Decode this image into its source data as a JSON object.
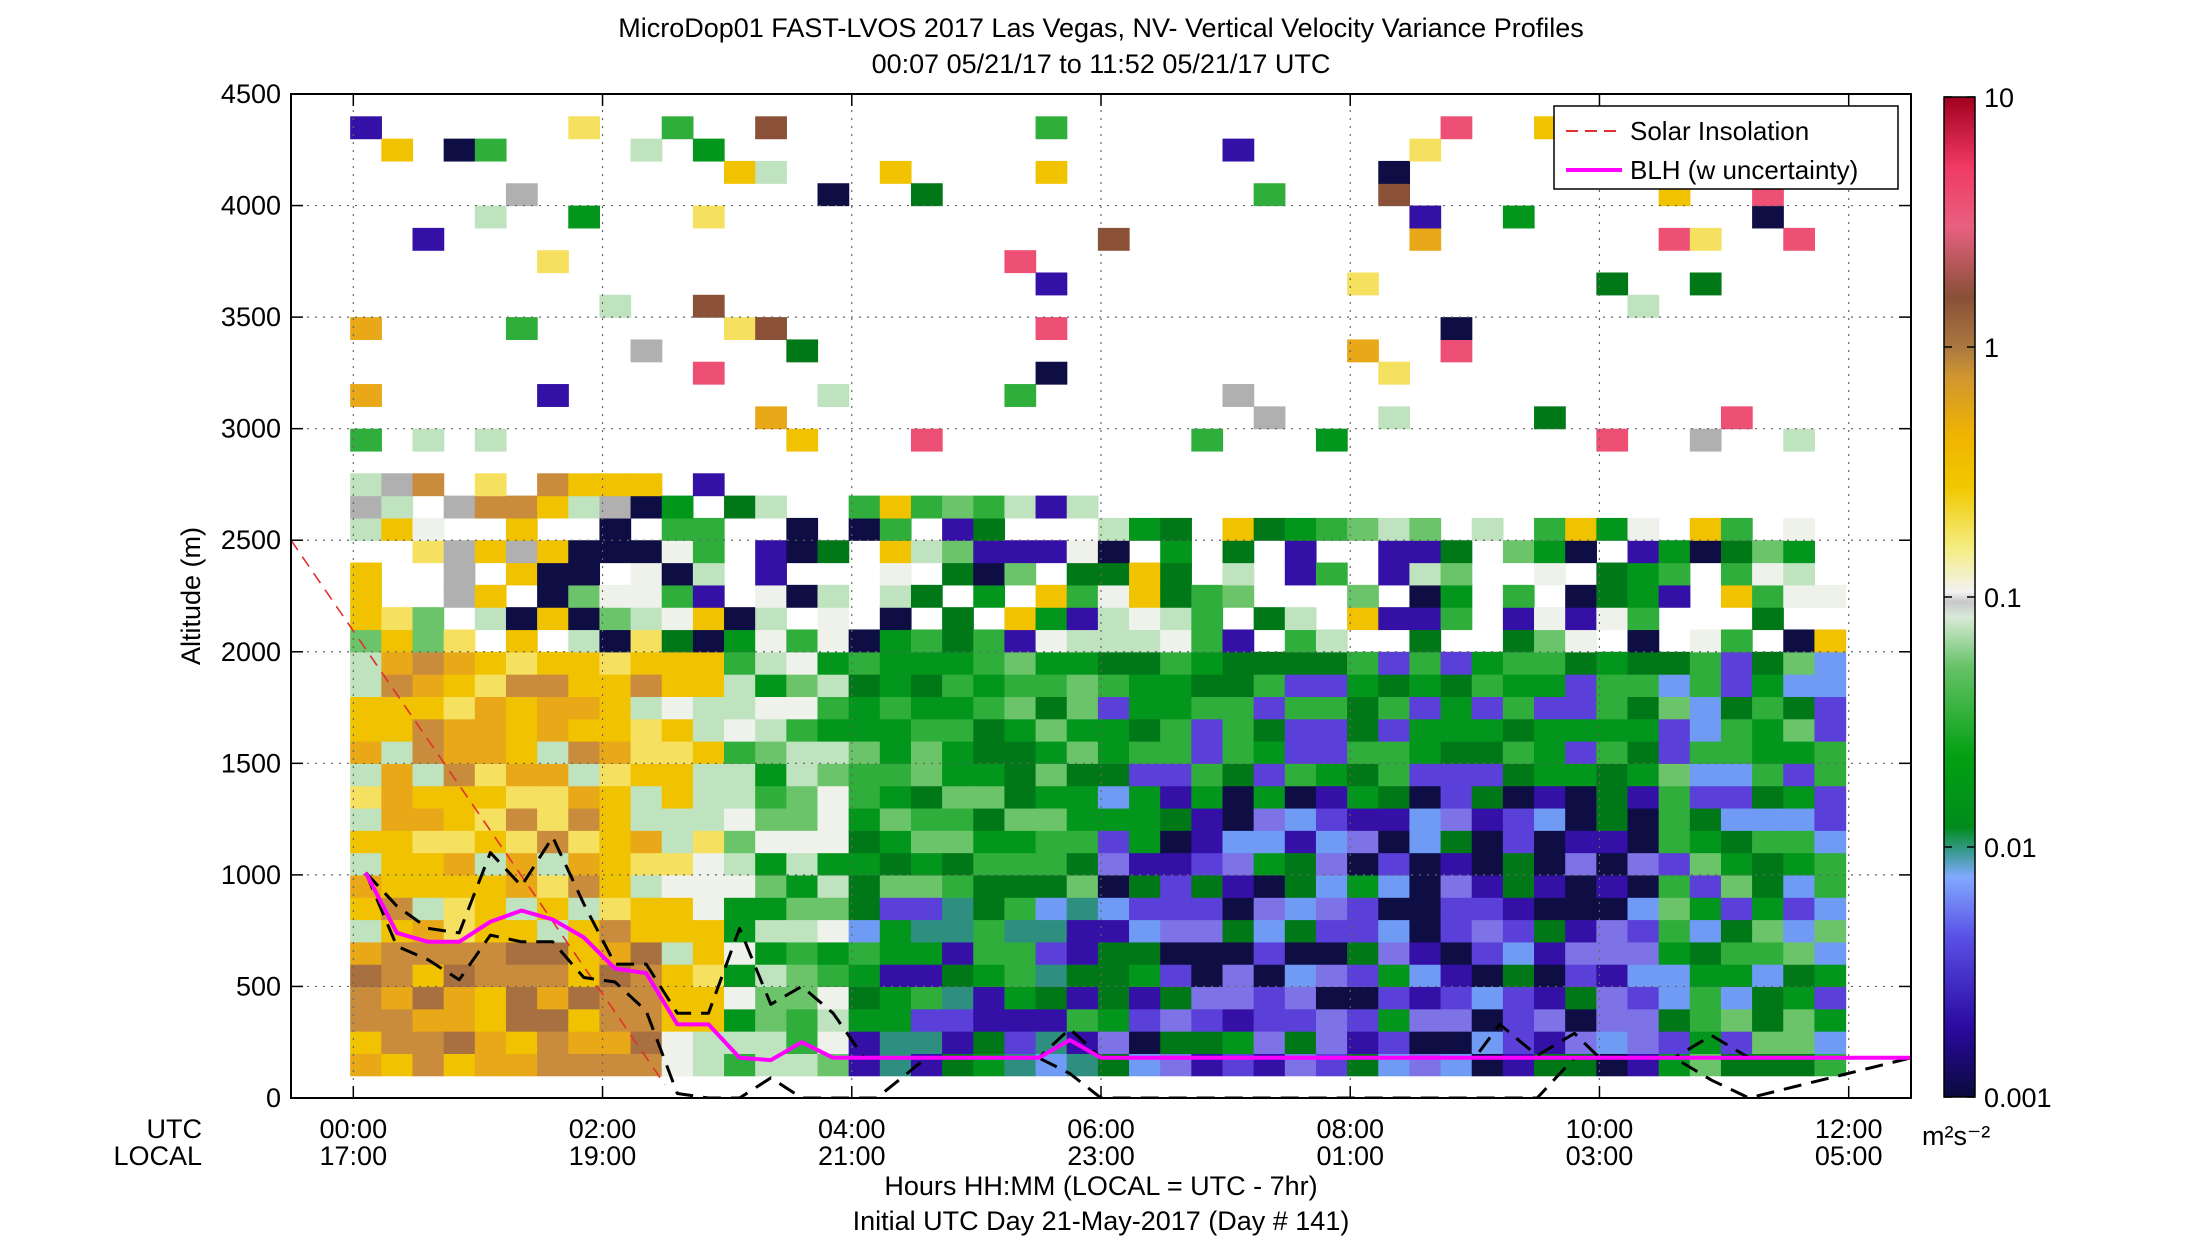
{
  "chart_data": {
    "type": "heatmap",
    "title": "MicroDop01 FAST-LVOS 2017 Las Vegas, NV- Vertical Velocity Variance Profiles",
    "subtitle": "00:07 05/21/17 to 11:52 05/21/17  UTC",
    "ylabel": "Altitude (m)",
    "xlabel": "Hours HH:MM  (LOCAL = UTC - 7hr)",
    "xlabel2": "Initial UTC Day 21-May-2017 (Day # 141)",
    "x_row_labels": [
      "UTC",
      "LOCAL"
    ],
    "x_ticks_hours": [
      0,
      2,
      4,
      6,
      8,
      10,
      12
    ],
    "x_ticks_utc": [
      "00:00",
      "02:00",
      "04:00",
      "06:00",
      "08:00",
      "10:00",
      "12:00"
    ],
    "x_ticks_local": [
      "17:00",
      "19:00",
      "21:00",
      "23:00",
      "01:00",
      "03:00",
      "05:00"
    ],
    "xlim_hours": [
      -0.5,
      12.5
    ],
    "ylim": [
      0,
      4500
    ],
    "y_ticks": [
      0,
      500,
      1000,
      1500,
      2000,
      2500,
      3000,
      3500,
      4000,
      4500
    ],
    "grid": true,
    "colorbar": {
      "scale": "log",
      "range": [
        0.001,
        10
      ],
      "tick_values": [
        0.001,
        0.01,
        0.1,
        1,
        10
      ],
      "tick_labels": [
        "0.001",
        "0.01",
        "0.1",
        "1",
        "10"
      ],
      "units": "m²s⁻²"
    },
    "legend": {
      "placement": "top-right",
      "entries": [
        "Solar Insolation",
        "BLH (w uncertainty)"
      ]
    },
    "series": [
      {
        "name": "Solar Insolation",
        "style": "dashed",
        "color": "#e03030",
        "x": [
          -0.5,
          2.5
        ],
        "y": [
          2500,
          60
        ]
      },
      {
        "name": "BLH (w uncertainty)",
        "color": "#ff00ff",
        "x": [
          0.1,
          0.35,
          0.6,
          0.85,
          1.1,
          1.35,
          1.6,
          1.85,
          2.1,
          2.35,
          2.6,
          2.85,
          3.1,
          3.35,
          3.6,
          3.85,
          4.5,
          5,
          5.5,
          5.75,
          6,
          7,
          8,
          9,
          9.5,
          10,
          10.5,
          11,
          11.5,
          12.5
        ],
        "y": [
          1010,
          740,
          700,
          700,
          790,
          840,
          800,
          720,
          580,
          560,
          330,
          330,
          180,
          170,
          250,
          180,
          180,
          180,
          180,
          260,
          180,
          180,
          180,
          180,
          180,
          180,
          180,
          180,
          180,
          180
        ]
      },
      {
        "name": "BLH upper bound",
        "style": "dashed",
        "color": "#000000",
        "x": [
          0.1,
          0.35,
          0.6,
          0.85,
          1.1,
          1.35,
          1.6,
          1.85,
          2.1,
          2.35,
          2.6,
          2.85,
          3.1,
          3.35,
          3.6,
          3.85,
          4.1,
          4.6,
          5,
          5.5,
          5.75,
          6,
          7,
          8,
          9,
          9.2,
          9.5,
          9.8,
          10,
          10.3,
          10.6,
          10.9,
          11.2,
          12.5
        ],
        "y": [
          1010,
          860,
          760,
          740,
          1100,
          950,
          1170,
          870,
          600,
          600,
          380,
          380,
          760,
          420,
          500,
          380,
          180,
          180,
          180,
          180,
          310,
          180,
          180,
          180,
          180,
          330,
          190,
          290,
          180,
          180,
          180,
          280,
          180,
          180
        ]
      },
      {
        "name": "BLH lower bound",
        "style": "dashed",
        "color": "#000000",
        "x": [
          0.1,
          0.35,
          0.6,
          0.85,
          1.1,
          1.35,
          1.6,
          1.85,
          2.1,
          2.35,
          2.6,
          2.85,
          3.1,
          3.35,
          3.6,
          3.85,
          4.2,
          4.6,
          5,
          5.5,
          5.75,
          6,
          7,
          8,
          9,
          9.2,
          9.5,
          9.8,
          10,
          10.6,
          10.9,
          11.2,
          12.5
        ],
        "y": [
          1010,
          680,
          620,
          530,
          730,
          700,
          700,
          540,
          520,
          390,
          20,
          0,
          0,
          90,
          0,
          0,
          0,
          180,
          180,
          180,
          110,
          0,
          0,
          0,
          0,
          0,
          0,
          180,
          180,
          180,
          80,
          0,
          180
        ]
      }
    ]
  }
}
